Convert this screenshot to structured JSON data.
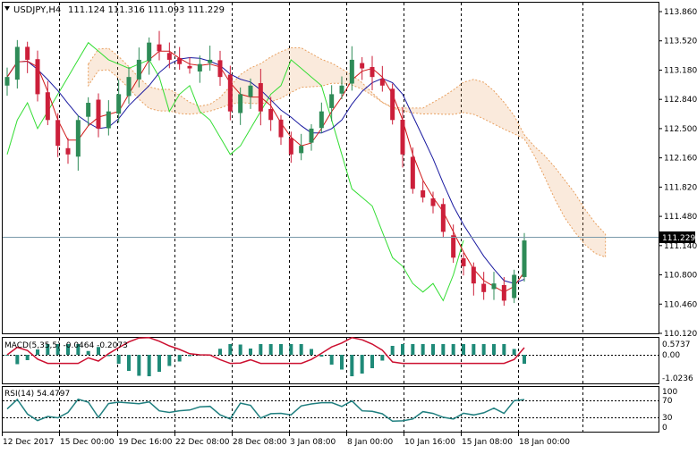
{
  "window": {
    "symbol_label": "USDJPY,H4",
    "ohlc_text": "111.124 111.316 111.093 111.229"
  },
  "price_axis": {
    "ticks": [
      "113.860",
      "113.520",
      "113.180",
      "112.840",
      "112.500",
      "112.160",
      "111.820",
      "111.480",
      "111.140",
      "110.800",
      "110.460",
      "110.120"
    ],
    "tick_values": [
      113.86,
      113.52,
      113.18,
      112.84,
      112.5,
      112.16,
      111.82,
      111.48,
      111.14,
      110.8,
      110.46,
      110.12
    ],
    "current_price": "111.229",
    "current_value": 111.229
  },
  "macd": {
    "label": "MACD(5,35,5) -0.0464 -0.2073",
    "ticks": [
      "0.5737",
      "0.00",
      "-1.0236"
    ]
  },
  "rsi": {
    "label": "RSI(14) 54.4797",
    "ticks": [
      "100",
      "70",
      "30",
      "0"
    ]
  },
  "time_axis": {
    "labels": [
      "12 Dec 2017",
      "15 Dec 00:00",
      "19 Dec 16:00",
      "22 Dec 08:00",
      "28 Dec 08:00",
      "3 Jan 08:00",
      "8 Jan 00:00",
      "10 Jan 16:00",
      "15 Jan 08:00",
      "18 Jan 00:00"
    ]
  },
  "colors": {
    "bull": "#2e8b57",
    "bear": "#cc1f3a",
    "tenkan": "#d01818",
    "kijun": "#1a1aa0",
    "chikou": "#33dd33",
    "cloud_up": "#e8a060",
    "cloud_down": "#d8b0c8",
    "macd_hist": "#1f8a78",
    "macd_signal": "#cc1030",
    "rsi_line": "#1f7f7f",
    "grid": "#000000"
  },
  "chart_data": [
    {
      "type": "candlestick",
      "title": "USDJPY,H4",
      "timeframe": "H4",
      "ylim": [
        110.12,
        113.86
      ],
      "last": {
        "open": 111.124,
        "high": 111.316,
        "low": 111.093,
        "close": 111.229
      },
      "overlays": [
        "ichimoku tenkan",
        "ichimoku kijun",
        "chikou span",
        "kumo cloud"
      ],
      "approx_close_path": [
        113.1,
        113.45,
        113.3,
        112.9,
        112.6,
        112.3,
        112.2,
        112.6,
        112.8,
        112.5,
        112.7,
        112.9,
        113.1,
        113.3,
        113.5,
        113.4,
        113.3,
        113.25,
        113.2,
        113.25,
        113.3,
        113.1,
        112.7,
        112.9,
        113.0,
        112.7,
        112.6,
        112.4,
        112.2,
        112.3,
        112.5,
        112.7,
        112.9,
        113.0,
        113.3,
        113.2,
        113.1,
        113.0,
        112.6,
        112.2,
        111.8,
        111.7,
        111.6,
        111.3,
        111.0,
        110.9,
        110.7,
        110.6,
        110.7,
        110.5,
        110.8,
        111.2
      ]
    },
    {
      "type": "bar",
      "title": "MACD(5,35,5)",
      "values_shown": {
        "main": -0.0464,
        "signal": -0.2073
      },
      "ylim": [
        -1.0236,
        0.5737
      ]
    },
    {
      "type": "line",
      "title": "RSI(14)",
      "last_value": 54.4797,
      "ylim": [
        0,
        100
      ],
      "levels": [
        70,
        30
      ]
    }
  ]
}
